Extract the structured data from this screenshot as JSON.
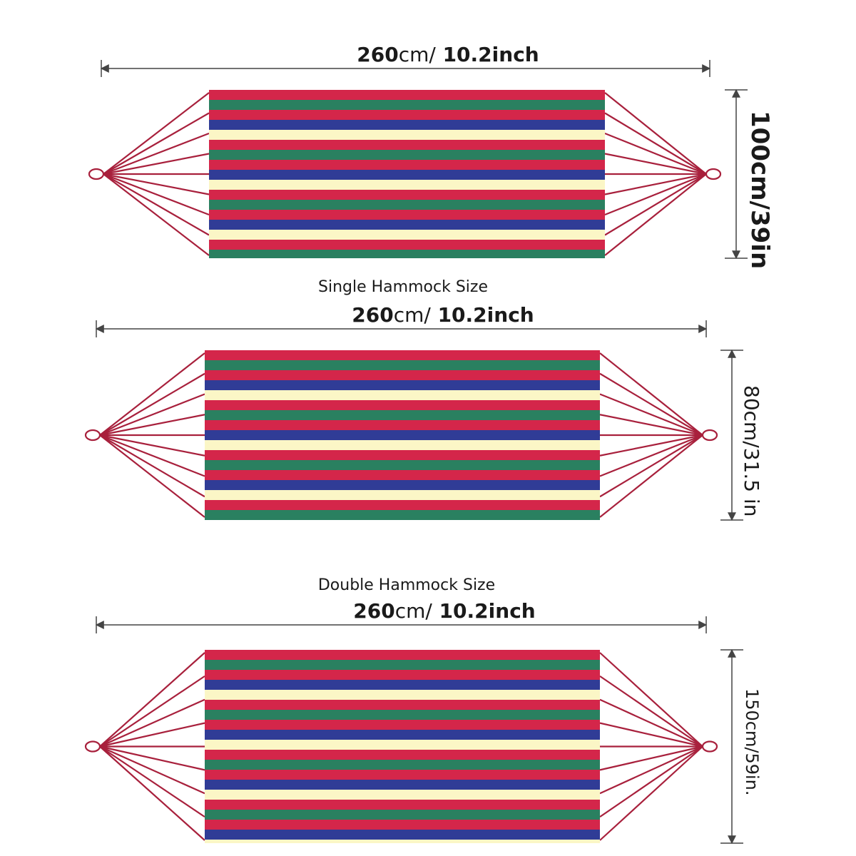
{
  "hammocks": [
    {
      "length": {
        "value": "260",
        "unit_text": "cm/",
        "inch_text": "10.2inch"
      },
      "width_text": "100cm/39in",
      "caption": "Single Hammock Size"
    },
    {
      "length": {
        "value": "260",
        "unit_text": "cm/",
        "inch_text": "10.2inch"
      },
      "width_text": "80cm/31.5 in",
      "caption": "Double Hammock Size"
    },
    {
      "length": {
        "value": "260",
        "unit_text": "cm/",
        "inch_text": "10.2inch"
      },
      "width_text": "150cm/59in.",
      "caption": ""
    }
  ],
  "colors": {
    "red": "#d4264a",
    "green": "#2a8060",
    "blue": "#303c96",
    "cream": "#fbf6c6",
    "rope": "#a8203c",
    "line": "#444444"
  },
  "stripe_pattern": [
    "red",
    "green",
    "red",
    "blue",
    "cream"
  ]
}
